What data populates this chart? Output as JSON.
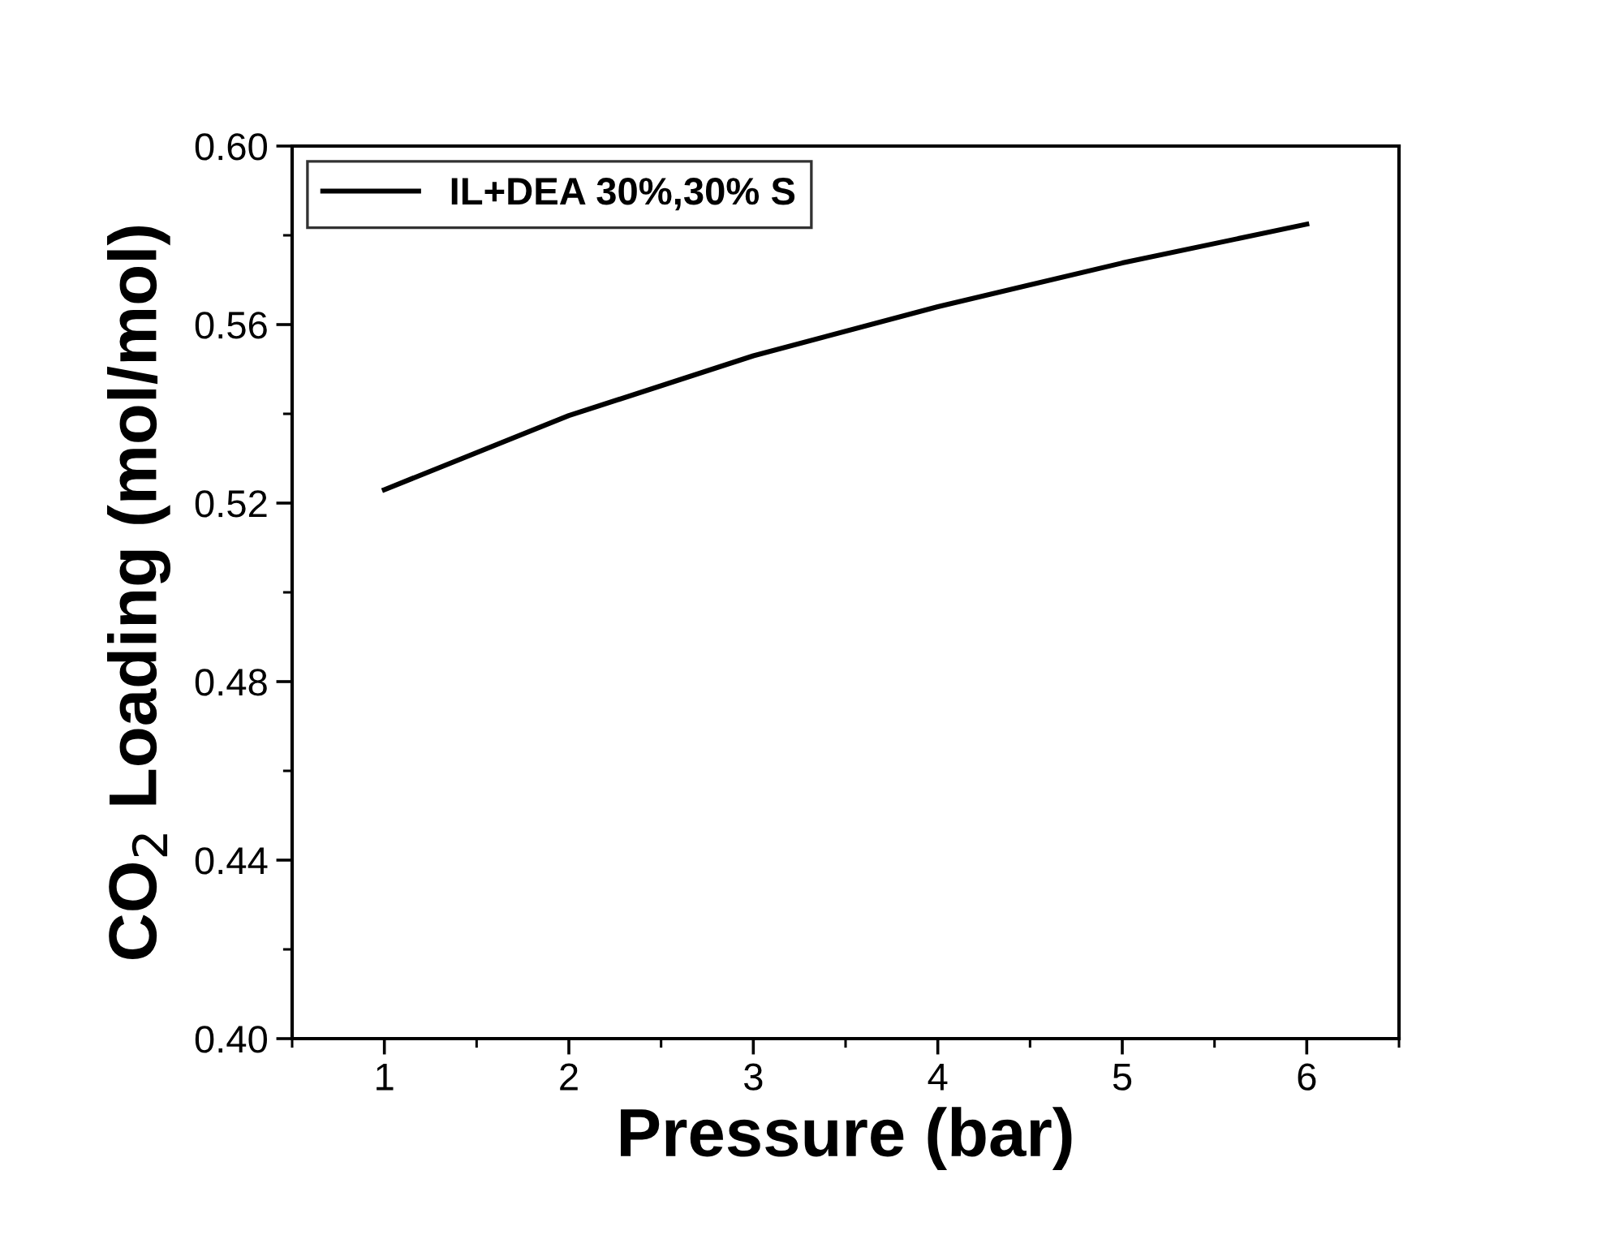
{
  "chart_data": {
    "type": "line",
    "xlabel": "Pressure (bar)",
    "ylabel": "CO$_{2}$ Loading (mol/mol)",
    "x": [
      1,
      2,
      3,
      4,
      5,
      6
    ],
    "series": [
      {
        "name": "IL+DEA 30%,30% S",
        "color": "#000000",
        "values": [
          0.523,
          0.5396,
          0.553,
          0.564,
          0.5738,
          0.5825
        ]
      }
    ],
    "xlim": [
      0.5,
      6.5
    ],
    "xticks": [
      1,
      2,
      3,
      4,
      5,
      6
    ],
    "ylim": [
      0.4,
      0.6
    ],
    "yticks": [
      {
        "value": 0.4,
        "label": "0.40"
      },
      {
        "value": 0.44,
        "label": "0.44"
      },
      {
        "value": 0.48,
        "label": "0.48"
      },
      {
        "value": 0.52,
        "label": "0.52"
      },
      {
        "value": 0.56,
        "label": "0.56"
      },
      {
        "value": 0.6,
        "label": "0.60"
      }
    ],
    "grid": false,
    "legend": "top left",
    "marker": "none",
    "line_style": "solid"
  }
}
